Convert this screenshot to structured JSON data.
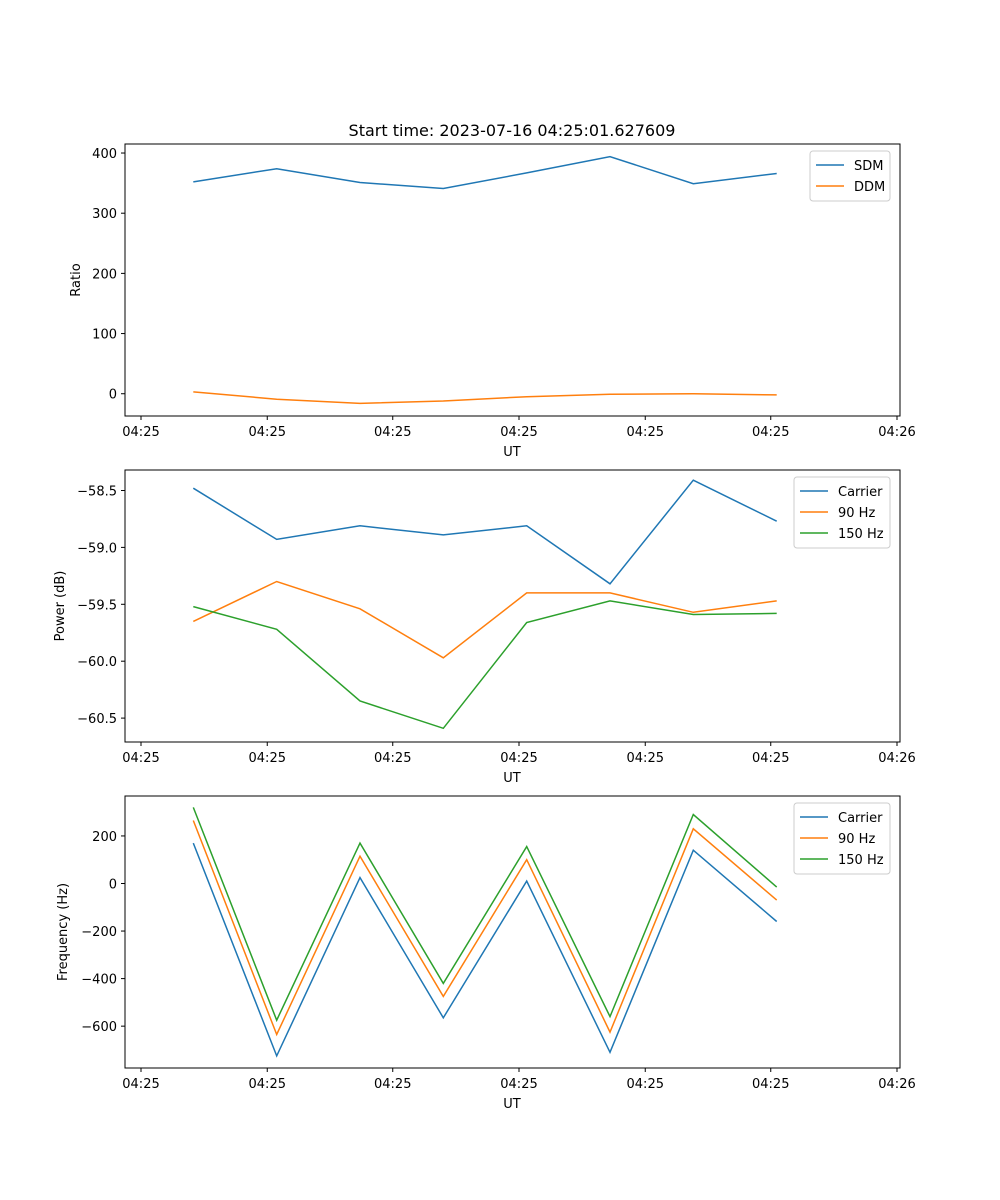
{
  "chart_data": [
    {
      "type": "line",
      "title": "Start time: 2023-07-16 04:25:01.627609",
      "xlabel": "UT",
      "ylabel": "Ratio",
      "x_tick_labels": [
        "04:25",
        "04:25",
        "04:25",
        "04:25",
        "04:25",
        "04:25",
        "04:26"
      ],
      "x_tick_fractions": [
        0.0,
        0.167,
        0.333,
        0.5,
        0.667,
        0.833,
        1.0
      ],
      "x": [
        1,
        2,
        3,
        4,
        5,
        6,
        7,
        8
      ],
      "xlim": [
        0.18,
        9.48
      ],
      "ylim": [
        -37,
        415
      ],
      "y_ticks": [
        0,
        100,
        200,
        300,
        400
      ],
      "legend_position": "top-right",
      "series": [
        {
          "name": "SDM",
          "color": "#1f77b4",
          "values": [
            352,
            374,
            351,
            341,
            367,
            394,
            349,
            366
          ]
        },
        {
          "name": "DDM",
          "color": "#ff7f0e",
          "values": [
            3,
            -9,
            -16,
            -12,
            -5,
            -1,
            0,
            -2
          ]
        }
      ]
    },
    {
      "type": "line",
      "title": "",
      "xlabel": "UT",
      "ylabel": "Power (dB)",
      "x_tick_labels": [
        "04:25",
        "04:25",
        "04:25",
        "04:25",
        "04:25",
        "04:25",
        "04:26"
      ],
      "x_tick_fractions": [
        0.0,
        0.167,
        0.333,
        0.5,
        0.667,
        0.833,
        1.0
      ],
      "x": [
        1,
        2,
        3,
        4,
        5,
        6,
        7,
        8
      ],
      "xlim": [
        0.18,
        9.48
      ],
      "ylim": [
        -60.71,
        -58.32
      ],
      "y_ticks": [
        -58.5,
        -59.0,
        -59.5,
        -60.0,
        -60.5
      ],
      "y_tick_labels": [
        "−58.5",
        "−59.0",
        "−59.5",
        "−60.0",
        "−60.5"
      ],
      "legend_position": "top-right",
      "series": [
        {
          "name": "Carrier",
          "color": "#1f77b4",
          "values": [
            -58.48,
            -58.93,
            -58.81,
            -58.89,
            -58.81,
            -59.32,
            -58.41,
            -58.77
          ]
        },
        {
          "name": "90 Hz",
          "color": "#ff7f0e",
          "values": [
            -59.65,
            -59.3,
            -59.54,
            -59.97,
            -59.4,
            -59.4,
            -59.57,
            -59.47
          ]
        },
        {
          "name": "150 Hz",
          "color": "#2ca02c",
          "values": [
            -59.52,
            -59.72,
            -60.35,
            -60.59,
            -59.66,
            -59.47,
            -59.59,
            -59.58
          ]
        }
      ]
    },
    {
      "type": "line",
      "title": "",
      "xlabel": "UT",
      "ylabel": "Frequency (Hz)",
      "x_tick_labels": [
        "04:25",
        "04:25",
        "04:25",
        "04:25",
        "04:25",
        "04:25",
        "04:26"
      ],
      "x_tick_fractions": [
        0.0,
        0.167,
        0.333,
        0.5,
        0.667,
        0.833,
        1.0
      ],
      "x": [
        1,
        2,
        3,
        4,
        5,
        6,
        7,
        8
      ],
      "xlim": [
        0.18,
        9.48
      ],
      "ylim": [
        -776,
        368
      ],
      "y_ticks": [
        200,
        0,
        -200,
        -400,
        -600
      ],
      "y_tick_labels": [
        "200",
        "0",
        "−200",
        "−400",
        "−600"
      ],
      "legend_position": "top-right",
      "series": [
        {
          "name": "Carrier",
          "color": "#1f77b4",
          "values": [
            170,
            -725,
            25,
            -565,
            10,
            -710,
            140,
            -160
          ]
        },
        {
          "name": "90 Hz",
          "color": "#ff7f0e",
          "values": [
            265,
            -635,
            115,
            -475,
            100,
            -625,
            230,
            -70
          ]
        },
        {
          "name": "150 Hz",
          "color": "#2ca02c",
          "values": [
            320,
            -575,
            170,
            -420,
            155,
            -560,
            290,
            -15
          ]
        }
      ]
    }
  ]
}
